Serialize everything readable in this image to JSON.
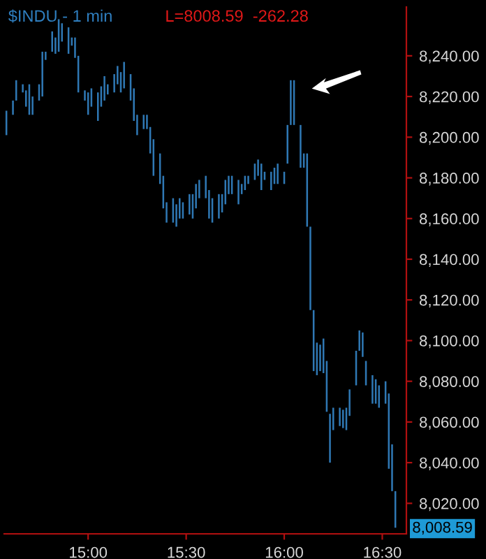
{
  "chart_data": {
    "type": "bar",
    "title": "$INDU - 1 min",
    "subtitle": "L=8008.59  -262.28",
    "x": [
      14.5833,
      14.6167,
      14.6333,
      14.6667,
      14.6833,
      14.7,
      14.7167,
      14.75,
      14.7667,
      14.7833,
      14.8167,
      14.8333,
      14.85,
      14.8667,
      14.9,
      14.9167,
      14.9333,
      14.95,
      14.9833,
      15,
      15.0167,
      15.05,
      15.0667,
      15.0833,
      15.1,
      15.1333,
      15.15,
      15.1667,
      15.1833,
      15.2167,
      15.2333,
      15.25,
      15.2833,
      15.3,
      15.3167,
      15.3333,
      15.3667,
      15.3833,
      15.4,
      15.4333,
      15.45,
      15.4667,
      15.4833,
      15.5167,
      15.5333,
      15.55,
      15.5667,
      15.6,
      15.6167,
      15.6333,
      15.6667,
      15.6833,
      15.7,
      15.7167,
      15.7333,
      15.7667,
      15.7833,
      15.8,
      15.8167,
      15.85,
      15.8667,
      15.8833,
      15.9,
      15.9333,
      15.95,
      15.9667,
      16,
      16.0167,
      16.0333,
      16.05,
      16.0833,
      16.1,
      16.1167,
      16.1333,
      16.15,
      16.1667,
      16.1833,
      16.2,
      16.2167,
      16.2333,
      16.25,
      16.2833,
      16.3,
      16.3167,
      16.3333,
      16.3667,
      16.3833,
      16.4,
      16.4167,
      16.45,
      16.4667,
      16.4833,
      16.5167,
      16.5333,
      16.55,
      16.5667
    ],
    "base": [
      8201,
      8211,
      8218,
      8222,
      8215,
      8211,
      8211,
      8218,
      8220,
      8238,
      8242,
      8241,
      8242,
      8247,
      8241,
      8245,
      8239,
      8222,
      8218,
      8211,
      8215,
      8208,
      8215,
      8218,
      8221,
      8222,
      8226,
      8222,
      8224,
      8218,
      8208,
      8201,
      8204,
      8204,
      8192,
      8181,
      8177,
      8165,
      8158,
      8158,
      8156,
      8160,
      8160,
      8162,
      8160,
      8165,
      8170,
      8170,
      8160,
      8158,
      8160,
      8163,
      8167,
      8172,
      8172,
      8167,
      8172,
      8174,
      8177,
      8179,
      8181,
      8174,
      8179,
      8174,
      8177,
      8177,
      8177,
      8187,
      8206,
      8206,
      8185,
      8185,
      8156,
      8115,
      8085,
      8083,
      8085,
      8084,
      8065,
      8040,
      8056,
      8058,
      8057,
      8056,
      8063,
      8078,
      8095,
      8092,
      8078,
      8069,
      8069,
      8067,
      8069,
      8037,
      8026,
      8008
    ],
    "values": [
      12,
      7,
      10,
      4,
      8,
      15,
      9,
      8,
      22,
      4,
      10,
      8,
      16,
      9,
      13,
      4,
      10,
      18,
      5,
      11,
      9,
      14,
      10,
      12,
      5,
      9,
      9,
      10,
      13,
      13,
      16,
      10,
      7,
      7,
      13,
      18,
      15,
      16,
      10,
      12,
      11,
      10,
      8,
      10,
      12,
      12,
      9,
      11,
      14,
      12,
      12,
      9,
      12,
      9,
      9,
      12,
      5,
      7,
      4,
      8,
      8,
      13,
      4,
      9,
      8,
      10,
      6,
      19,
      22,
      22,
      21,
      7,
      36,
      41,
      30,
      16,
      13,
      17,
      25,
      24,
      11,
      9,
      9,
      11,
      13,
      17,
      10,
      12,
      12,
      14,
      12,
      11,
      11,
      37,
      23,
      18
    ],
    "color": "#2f78b4",
    "xlim": [
      14.572,
      16.623
    ],
    "xticks": [
      {
        "value": 15,
        "label": "15:00"
      },
      {
        "value": 15.5,
        "label": "15:30"
      },
      {
        "value": 16,
        "label": "16:00"
      },
      {
        "value": 16.5,
        "label": "16:30"
      }
    ],
    "ylim": [
      8005,
      8264
    ],
    "yticks": [
      {
        "value": 8020,
        "label": "8,020.00"
      },
      {
        "value": 8040,
        "label": "8,040.00"
      },
      {
        "value": 8060,
        "label": "8,060.00"
      },
      {
        "value": 8080,
        "label": "8,080.00"
      },
      {
        "value": 8100,
        "label": "8,100.00"
      },
      {
        "value": 8120,
        "label": "8,120.00"
      },
      {
        "value": 8140,
        "label": "8,140.00"
      },
      {
        "value": 8160,
        "label": "8,160.00"
      },
      {
        "value": 8180,
        "label": "8,180.00"
      },
      {
        "value": 8200,
        "label": "8,200.00"
      },
      {
        "value": 8220,
        "label": "8,220.00"
      },
      {
        "value": 8240,
        "label": "8,240.00"
      }
    ],
    "annotations": [
      "8,008.59"
    ],
    "grid": false,
    "legend": false
  }
}
